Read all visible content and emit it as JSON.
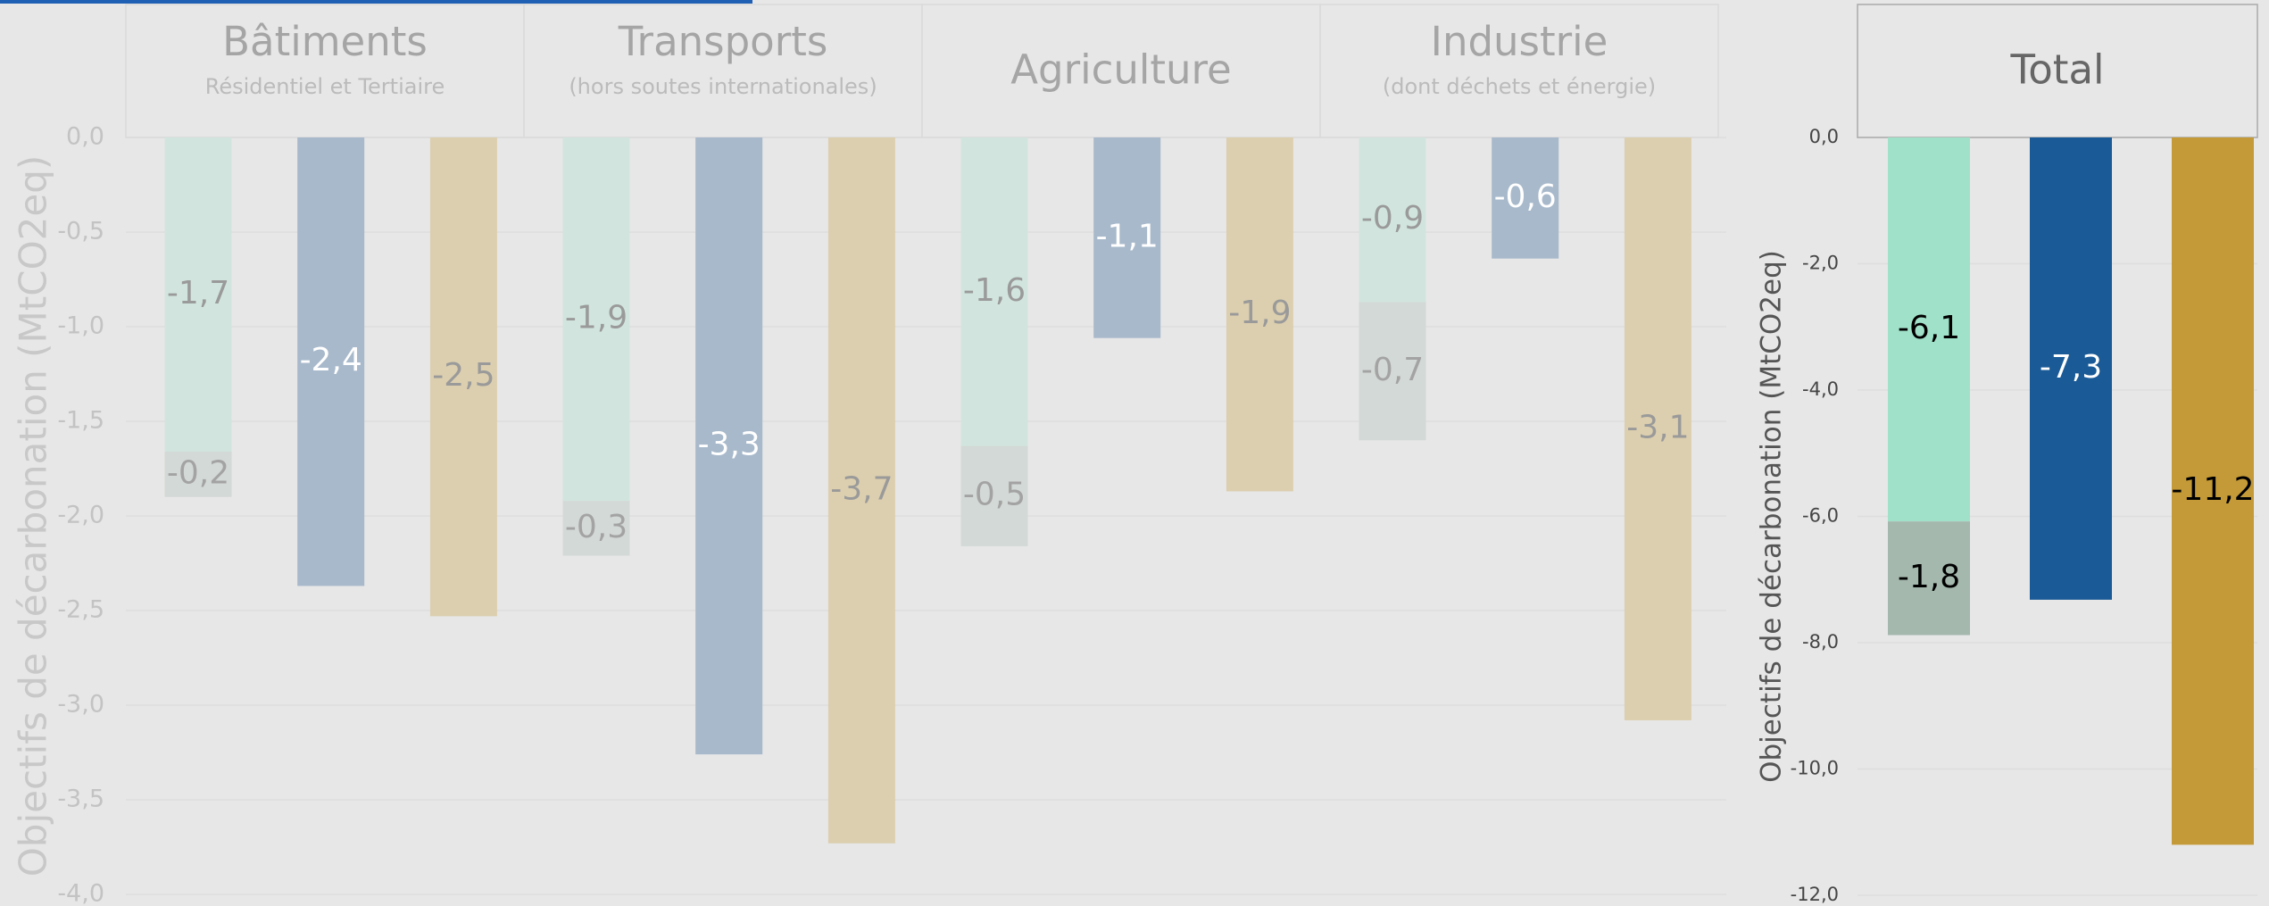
{
  "chart_data": [
    {
      "type": "bar",
      "stacked": true,
      "groups": [
        {
          "title": "Bâtiments",
          "subtitle": "Résidentiel et Tertiaire"
        },
        {
          "title": "Transports",
          "subtitle": "(hors soutes internationales)"
        },
        {
          "title": "Agriculture"
        },
        {
          "title": "Industrie",
          "subtitle": "(dont déchets et énergie)"
        }
      ],
      "ylabel": "Objectifs de décarbonation (MtCO2eq)",
      "ylim": [
        -4,
        0
      ],
      "yticks": [
        {
          "value": 0,
          "label": "0,0"
        },
        {
          "value": -0.5,
          "label": "-0,5"
        },
        {
          "value": -1,
          "label": "-1,0"
        },
        {
          "value": -1.5,
          "label": "-1,5"
        },
        {
          "value": -2,
          "label": "-2,0"
        },
        {
          "value": -2.5,
          "label": "-2,5"
        },
        {
          "value": -3,
          "label": "-3,0"
        },
        {
          "value": -3.5,
          "label": "-3,5"
        },
        {
          "value": -4,
          "label": "-4,0"
        }
      ],
      "grid": true,
      "series": [
        {
          "stack": 0,
          "color": "#d1e5de",
          "label_color": "#9a9a9a",
          "values": [
            -1.66,
            -1.92,
            -1.63,
            -0.87
          ],
          "value_labels": [
            "-1,7",
            "-1,9",
            "-1,6",
            "-0,9"
          ]
        },
        {
          "stack": 0,
          "color": "#d3d9d6",
          "label_color": "#a3a3a3",
          "values": [
            -0.24,
            -0.29,
            -0.53,
            -0.73
          ],
          "value_labels": [
            "-0,2",
            "-0,3",
            "-0,5",
            "-0,7"
          ]
        },
        {
          "stack": 1,
          "color": "#a8b9cb",
          "label_color": "#ffffff",
          "values": [
            -2.37,
            -3.26,
            -1.06,
            -0.64
          ],
          "value_labels": [
            "-2,4",
            "-3,3",
            "-1,1",
            "-0,6"
          ]
        },
        {
          "stack": 2,
          "color": "#dccfaf",
          "label_color": "#9a9a9a",
          "values": [
            -2.53,
            -3.73,
            -1.87,
            -3.08
          ],
          "value_labels": [
            "-2,5",
            "-3,7",
            "-1,9",
            "-3,1"
          ]
        }
      ]
    },
    {
      "type": "bar",
      "stacked": true,
      "groups": [
        {
          "title": "Total"
        }
      ],
      "ylabel": "Objectifs de décarbonation (MtCO2eq)",
      "ylim": [
        -12,
        0
      ],
      "yticks": [
        {
          "value": 0,
          "label": "0,0"
        },
        {
          "value": -2,
          "label": "-2,0"
        },
        {
          "value": -4,
          "label": "-4,0"
        },
        {
          "value": -6,
          "label": "-6,0"
        },
        {
          "value": -8,
          "label": "-8,0"
        },
        {
          "value": -10,
          "label": "-10,0"
        },
        {
          "value": -12,
          "label": "-12,0"
        }
      ],
      "grid": true,
      "series": [
        {
          "stack": 0,
          "color": "#a0e1c9",
          "label_color": "#000000",
          "values": [
            -6.08
          ],
          "value_labels": [
            "-6,1"
          ]
        },
        {
          "stack": 0,
          "color": "#a4b8ad",
          "label_color": "#000000",
          "values": [
            -1.8
          ],
          "value_labels": [
            "-1,8"
          ]
        },
        {
          "stack": 1,
          "color": "#1a5a96",
          "label_color": "#ffffff",
          "values": [
            -7.32
          ],
          "value_labels": [
            "-7,3"
          ]
        },
        {
          "stack": 2,
          "color": "#c49a38",
          "label_color": "#000000",
          "values": [
            -11.2
          ],
          "value_labels": [
            "-11,2"
          ]
        }
      ]
    }
  ]
}
